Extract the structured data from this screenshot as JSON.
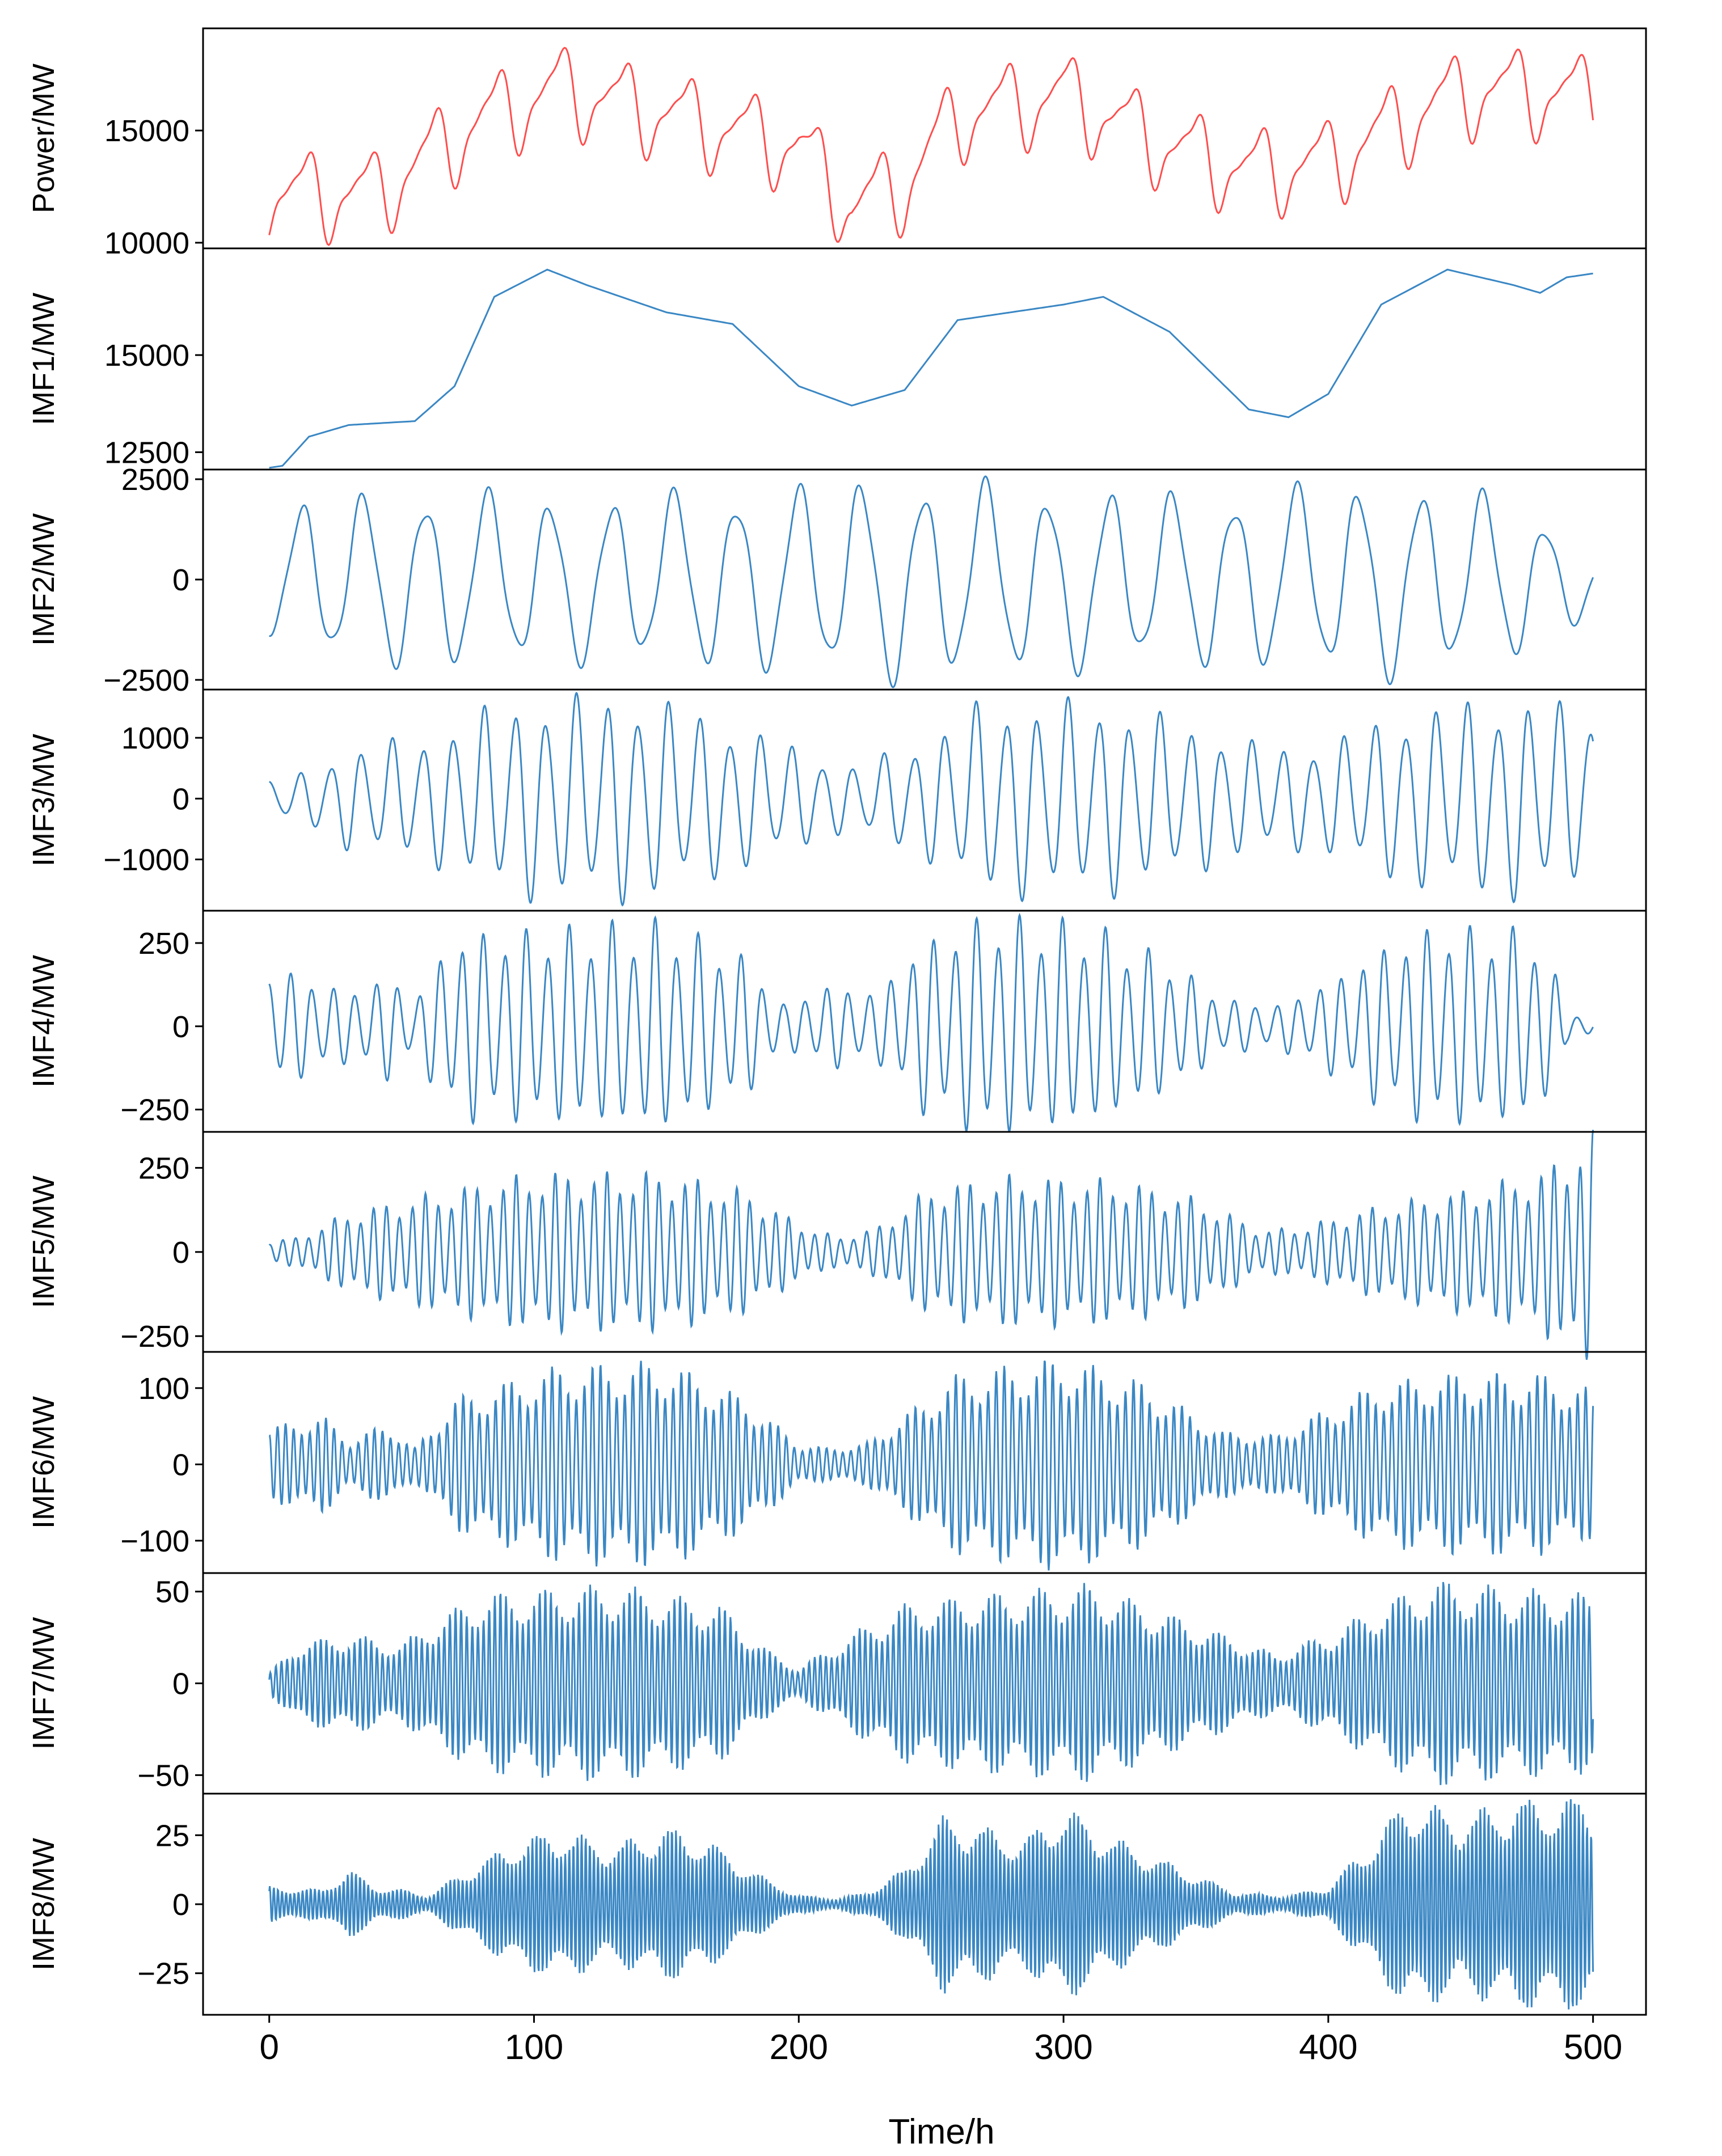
{
  "figure": {
    "xlabel": "Time/h",
    "xticks": [
      0,
      100,
      200,
      300,
      400,
      500
    ],
    "xlim": [
      -25,
      520
    ]
  },
  "colors": {
    "power": "#ff4d4d",
    "imf": "#3a87c4",
    "axis": "#000000"
  },
  "chart_data": [
    {
      "type": "line",
      "ylabel": "Power/MW",
      "color": "#ff4d4d",
      "xlim": [
        0,
        500
      ],
      "ylim": [
        10000,
        19300
      ],
      "yticks": [
        10000,
        15000
      ],
      "generator": {
        "kind": "power",
        "base_trend": [
          [
            0,
            12200
          ],
          [
            40,
            12200
          ],
          [
            80,
            15500
          ],
          [
            110,
            16900
          ],
          [
            200,
            14300
          ],
          [
            220,
            11600
          ],
          [
            240,
            12600
          ],
          [
            260,
            15700
          ],
          [
            300,
            16600
          ],
          [
            340,
            14300
          ],
          [
            370,
            13200
          ],
          [
            400,
            13600
          ],
          [
            440,
            16200
          ],
          [
            460,
            16900
          ],
          [
            500,
            16500
          ]
        ],
        "daily_amplitude": 2800,
        "period_h": 24
      }
    },
    {
      "type": "line",
      "ylabel": "IMF1/MW",
      "color": "#3a87c4",
      "xlim": [
        0,
        500
      ],
      "ylim": [
        12200,
        17600
      ],
      "yticks": [
        12500,
        15000
      ],
      "points": [
        [
          0,
          12100
        ],
        [
          5,
          12150
        ],
        [
          15,
          12900
        ],
        [
          30,
          13200
        ],
        [
          55,
          13300
        ],
        [
          70,
          14200
        ],
        [
          85,
          16500
        ],
        [
          105,
          17200
        ],
        [
          120,
          16800
        ],
        [
          150,
          16100
        ],
        [
          175,
          15800
        ],
        [
          200,
          14200
        ],
        [
          220,
          13700
        ],
        [
          240,
          14100
        ],
        [
          260,
          15900
        ],
        [
          300,
          16300
        ],
        [
          315,
          16500
        ],
        [
          340,
          15600
        ],
        [
          370,
          13600
        ],
        [
          385,
          13400
        ],
        [
          400,
          14000
        ],
        [
          420,
          16300
        ],
        [
          445,
          17200
        ],
        [
          470,
          16800
        ],
        [
          480,
          16600
        ],
        [
          490,
          17000
        ],
        [
          500,
          17100
        ]
      ]
    },
    {
      "type": "line",
      "ylabel": "IMF2/MW",
      "color": "#3a87c4",
      "xlim": [
        0,
        500
      ],
      "ylim": [
        -2600,
        2600
      ],
      "yticks": [
        -2500,
        0,
        2500
      ],
      "generator": {
        "kind": "sine",
        "period": 23.5,
        "phase": -1.65,
        "envelope": [
          [
            0,
            1300
          ],
          [
            15,
            2000
          ],
          [
            60,
            2200
          ],
          [
            120,
            2000
          ],
          [
            200,
            2300
          ],
          [
            230,
            2500
          ],
          [
            280,
            2300
          ],
          [
            350,
            2100
          ],
          [
            420,
            2400
          ],
          [
            470,
            2000
          ],
          [
            490,
            1200
          ],
          [
            500,
            900
          ]
        ]
      }
    },
    {
      "type": "line",
      "ylabel": "IMF3/MW",
      "color": "#3a87c4",
      "xlim": [
        0,
        500
      ],
      "ylim": [
        -1750,
        1700
      ],
      "yticks": [
        -1000,
        0,
        1000
      ],
      "generator": {
        "kind": "sine",
        "period": 11.6,
        "phase": 1.5,
        "envelope": [
          [
            0,
            300
          ],
          [
            10,
            350
          ],
          [
            30,
            800
          ],
          [
            60,
            1000
          ],
          [
            90,
            1550
          ],
          [
            140,
            1650
          ],
          [
            175,
            1200
          ],
          [
            200,
            800
          ],
          [
            220,
            500
          ],
          [
            250,
            1000
          ],
          [
            270,
            1550
          ],
          [
            320,
            1500
          ],
          [
            350,
            1150
          ],
          [
            380,
            800
          ],
          [
            400,
            900
          ],
          [
            430,
            1400
          ],
          [
            470,
            1600
          ],
          [
            500,
            1400
          ]
        ]
      }
    },
    {
      "type": "line",
      "ylabel": "IMF4/MW",
      "color": "#3a87c4",
      "xlim": [
        0,
        500
      ],
      "ylim": [
        -300,
        330
      ],
      "yticks": [
        -250,
        0,
        250
      ],
      "generator": {
        "kind": "sine",
        "period": 8.1,
        "phase": 1.6,
        "envelope": [
          [
            0,
            170
          ],
          [
            15,
            140
          ],
          [
            30,
            100
          ],
          [
            45,
            150
          ],
          [
            55,
            80
          ],
          [
            70,
            270
          ],
          [
            110,
            280
          ],
          [
            150,
            300
          ],
          [
            180,
            200
          ],
          [
            195,
            60
          ],
          [
            210,
            120
          ],
          [
            230,
            100
          ],
          [
            245,
            240
          ],
          [
            270,
            320
          ],
          [
            310,
            290
          ],
          [
            340,
            190
          ],
          [
            360,
            80
          ],
          [
            380,
            60
          ],
          [
            400,
            130
          ],
          [
            420,
            230
          ],
          [
            440,
            290
          ],
          [
            480,
            270
          ],
          [
            490,
            50
          ],
          [
            500,
            20
          ]
        ]
      }
    },
    {
      "type": "line",
      "ylabel": "IMF5/MW",
      "color": "#3a87c4",
      "xlim": [
        0,
        500
      ],
      "ylim": [
        -280,
        340
      ],
      "yticks": [
        -250,
        0,
        250
      ],
      "generator": {
        "kind": "sine",
        "period": 4.9,
        "phase": 1.3,
        "envelope": [
          [
            0,
            30
          ],
          [
            10,
            40
          ],
          [
            30,
            110
          ],
          [
            60,
            160
          ],
          [
            100,
            220
          ],
          [
            150,
            220
          ],
          [
            180,
            170
          ],
          [
            200,
            80
          ],
          [
            215,
            40
          ],
          [
            230,
            70
          ],
          [
            250,
            180
          ],
          [
            280,
            210
          ],
          [
            320,
            200
          ],
          [
            350,
            150
          ],
          [
            375,
            60
          ],
          [
            390,
            70
          ],
          [
            420,
            130
          ],
          [
            450,
            170
          ],
          [
            480,
            220
          ],
          [
            495,
            300
          ],
          [
            500,
            330
          ]
        ]
      }
    },
    {
      "type": "line",
      "ylabel": "IMF6/MW",
      "color": "#3a87c4",
      "xlim": [
        0,
        500
      ],
      "ylim": [
        -135,
        140
      ],
      "yticks": [
        -100,
        0,
        100
      ],
      "generator": {
        "kind": "sine",
        "period": 3.05,
        "phase": 1.4,
        "envelope": [
          [
            0,
            45
          ],
          [
            20,
            60
          ],
          [
            30,
            30
          ],
          [
            45,
            50
          ],
          [
            55,
            20
          ],
          [
            70,
            80
          ],
          [
            110,
            120
          ],
          [
            150,
            125
          ],
          [
            180,
            80
          ],
          [
            200,
            25
          ],
          [
            210,
            20
          ],
          [
            225,
            25
          ],
          [
            240,
            60
          ],
          [
            260,
            110
          ],
          [
            300,
            130
          ],
          [
            330,
            100
          ],
          [
            360,
            40
          ],
          [
            380,
            35
          ],
          [
            395,
            60
          ],
          [
            420,
            100
          ],
          [
            450,
            110
          ],
          [
            480,
            110
          ],
          [
            500,
            90
          ]
        ]
      }
    },
    {
      "type": "line",
      "ylabel": "IMF7/MW",
      "color": "#3a87c4",
      "xlim": [
        0,
        500
      ],
      "ylim": [
        -57,
        57
      ],
      "yticks": [
        -50,
        0,
        50
      ],
      "generator": {
        "kind": "sine",
        "period": 2.12,
        "phase": 0.4,
        "envelope": [
          [
            0,
            5
          ],
          [
            10,
            20
          ],
          [
            30,
            25
          ],
          [
            50,
            20
          ],
          [
            60,
            30
          ],
          [
            80,
            45
          ],
          [
            130,
            50
          ],
          [
            170,
            40
          ],
          [
            190,
            15
          ],
          [
            200,
            8
          ],
          [
            220,
            25
          ],
          [
            240,
            40
          ],
          [
            270,
            45
          ],
          [
            310,
            50
          ],
          [
            350,
            30
          ],
          [
            380,
            15
          ],
          [
            400,
            25
          ],
          [
            420,
            40
          ],
          [
            440,
            52
          ],
          [
            470,
            48
          ],
          [
            500,
            45
          ]
        ]
      }
    },
    {
      "type": "line",
      "ylabel": "IMF8/MW",
      "color": "#3a87c4",
      "xlim": [
        0,
        500
      ],
      "ylim": [
        -38,
        38
      ],
      "yticks": [
        -25,
        0,
        25
      ],
      "generator": {
        "kind": "sine",
        "period": 1.55,
        "phase": 0.8,
        "envelope": [
          [
            0,
            6
          ],
          [
            20,
            5
          ],
          [
            30,
            12
          ],
          [
            40,
            6
          ],
          [
            50,
            5
          ],
          [
            60,
            3
          ],
          [
            75,
            12
          ],
          [
            95,
            22
          ],
          [
            110,
            25
          ],
          [
            130,
            20
          ],
          [
            150,
            26
          ],
          [
            165,
            22
          ],
          [
            185,
            10
          ],
          [
            200,
            3
          ],
          [
            215,
            2
          ],
          [
            225,
            4
          ],
          [
            240,
            12
          ],
          [
            255,
            30
          ],
          [
            285,
            22
          ],
          [
            300,
            33
          ],
          [
            320,
            22
          ],
          [
            345,
            12
          ],
          [
            365,
            4
          ],
          [
            385,
            3
          ],
          [
            400,
            6
          ],
          [
            415,
            20
          ],
          [
            430,
            36
          ],
          [
            450,
            30
          ],
          [
            470,
            35
          ],
          [
            500,
            36
          ]
        ]
      }
    }
  ]
}
